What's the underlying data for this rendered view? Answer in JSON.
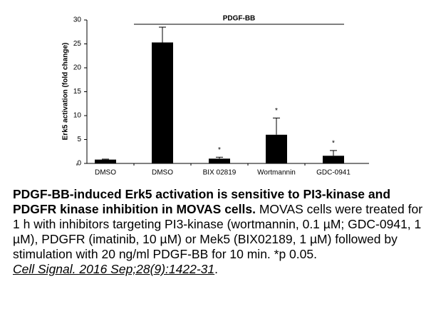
{
  "chart_data": {
    "type": "bar",
    "y_label": "Erk5 activation (fold change)",
    "categories": [
      "DMSO",
      "DMSO",
      "BIX 02819",
      "Wortmannin",
      "GDC-0941"
    ],
    "values": [
      0.8,
      25.3,
      1.0,
      6.0,
      1.6
    ],
    "errors": [
      0.1,
      3.2,
      0.3,
      3.5,
      1.1
    ],
    "significance_labels": [
      null,
      null,
      "*",
      "*",
      "*"
    ],
    "bracket": {
      "label": "PDGF-BB",
      "from": 1,
      "to": 4
    },
    "color": "#000000",
    "ylim": [
      0,
      30
    ],
    "yticks": [
      0,
      5,
      10,
      15,
      20,
      25,
      30
    ],
    "grid": false
  },
  "caption": {
    "title": "PDGF-BB-induced Erk5 activation is sensitive to PI3-kinase and PDGFR kinase inhibition in MOVAS cells.",
    "body": "MOVAS cells were treated for 1 h with inhibitors targeting PI3-kinase (wortmannin, 0.1 µM; GDC-0941, 1 µM), PDGFR (imatinib, 10 µM) or Mek5 (BIX02189, 1 µM) followed by stimulation with 20 ng/ml PDGF-BB for 10 min. *p 0.05.",
    "citation": "Cell Signal. 2016 Sep;28(9):1422-31",
    "citation_suffix": "."
  }
}
